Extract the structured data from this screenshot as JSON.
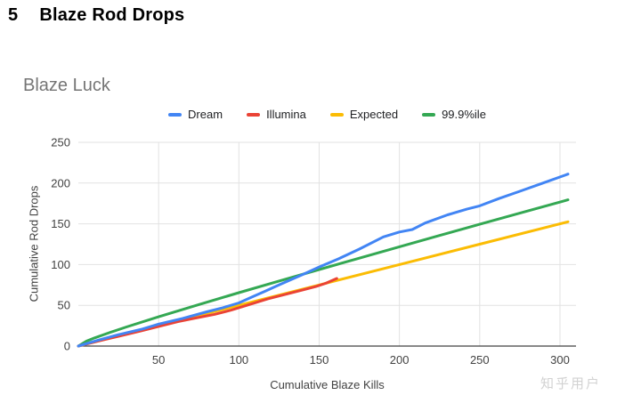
{
  "page": {
    "section_number": "5",
    "section_title": "Blaze Rod Drops",
    "watermark": "知乎用户"
  },
  "colors": {
    "dream_blue": "#4285F4",
    "illumina_red": "#EA4335",
    "expected_yellow": "#FBBC04",
    "percentile_green": "#34A853",
    "gridline": "#e2e2e2",
    "axis_line": "#424242",
    "tick_label": "#424242",
    "chart_title_gray": "#757575"
  },
  "chart_data": {
    "type": "line",
    "title": "Blaze Luck",
    "xlabel": "Cumulative Blaze Kills",
    "ylabel": "Cumulative Rod Drops",
    "xlim": [
      0,
      310
    ],
    "ylim": [
      0,
      250
    ],
    "x_ticks": [
      50,
      100,
      150,
      200,
      250,
      300
    ],
    "y_ticks": [
      0,
      50,
      100,
      150,
      200,
      250
    ],
    "grid": true,
    "legend_position": "top",
    "series": [
      {
        "name": "Dream",
        "color": "#4285F4",
        "points": [
          [
            0,
            0
          ],
          [
            12,
            7
          ],
          [
            25,
            14
          ],
          [
            40,
            21
          ],
          [
            50,
            27
          ],
          [
            65,
            34
          ],
          [
            80,
            42
          ],
          [
            90,
            47
          ],
          [
            100,
            53
          ],
          [
            108,
            60
          ],
          [
            116,
            67
          ],
          [
            125,
            75
          ],
          [
            140,
            88
          ],
          [
            150,
            97
          ],
          [
            162,
            107
          ],
          [
            175,
            119
          ],
          [
            190,
            134
          ],
          [
            200,
            140
          ],
          [
            208,
            143
          ],
          [
            216,
            151
          ],
          [
            230,
            161
          ],
          [
            242,
            168
          ],
          [
            250,
            172
          ],
          [
            262,
            181
          ],
          [
            275,
            190
          ],
          [
            288,
            199
          ],
          [
            305,
            211
          ]
        ]
      },
      {
        "name": "Illumina",
        "color": "#EA4335",
        "points": [
          [
            0,
            0
          ],
          [
            12,
            6
          ],
          [
            25,
            12
          ],
          [
            40,
            19
          ],
          [
            52,
            25
          ],
          [
            62,
            30
          ],
          [
            72,
            34
          ],
          [
            85,
            39
          ],
          [
            95,
            44
          ],
          [
            105,
            50
          ],
          [
            118,
            58
          ],
          [
            130,
            64
          ],
          [
            140,
            69
          ],
          [
            148,
            73
          ],
          [
            154,
            77
          ],
          [
            161,
            83
          ]
        ]
      },
      {
        "name": "Expected",
        "color": "#FBBC04",
        "points": [
          [
            0,
            0
          ],
          [
            50,
            25
          ],
          [
            100,
            50
          ],
          [
            150,
            75
          ],
          [
            200,
            100
          ],
          [
            250,
            125
          ],
          [
            305,
            152.5
          ]
        ]
      },
      {
        "name": "99.9%ile",
        "color": "#34A853",
        "points": [
          [
            0,
            0
          ],
          [
            5,
            6
          ],
          [
            10,
            9.9
          ],
          [
            20,
            16.9
          ],
          [
            30,
            23.5
          ],
          [
            50,
            35.9
          ],
          [
            75,
            50.9
          ],
          [
            100,
            65.5
          ],
          [
            125,
            79.8
          ],
          [
            150,
            93.9
          ],
          [
            175,
            107.9
          ],
          [
            200,
            121.8
          ],
          [
            225,
            135.7
          ],
          [
            250,
            149.4
          ],
          [
            275,
            163.1
          ],
          [
            305,
            179.5
          ]
        ]
      }
    ]
  }
}
